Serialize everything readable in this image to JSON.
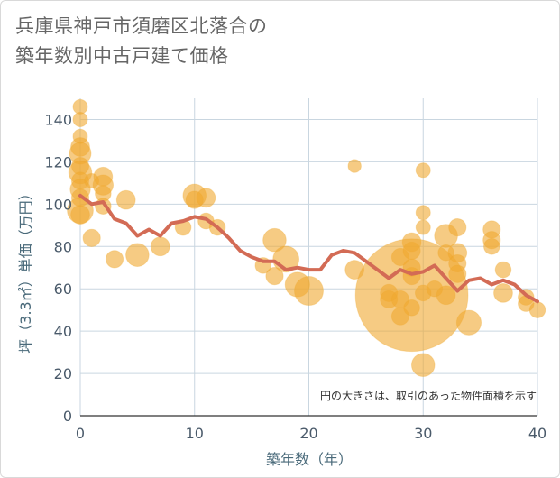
{
  "header": {
    "title_line1": "兵庫県神戸市須磨区北落合の",
    "title_line2": "築年数別中古戸建て価格"
  },
  "colors": {
    "bubble": "#f0a830",
    "line": "#d36b55",
    "grid": "#c9d6e0",
    "axis_text": "#4a5a6a"
  },
  "chart_data": {
    "type": "scatter",
    "xlabel": "築年数（年）",
    "ylabel": "坪（3.3㎡）単価（万円）",
    "xlim": [
      0,
      40
    ],
    "ylim": [
      0,
      150
    ],
    "xticks": [
      0,
      10,
      20,
      30,
      40
    ],
    "yticks": [
      0,
      20,
      40,
      60,
      80,
      100,
      120,
      140
    ],
    "annotation": "円の大きさは、取引のあった物件面積を示す",
    "grid": true,
    "series": [
      {
        "kind": "bubble",
        "points": [
          {
            "x": 0,
            "y": 146,
            "s": 1
          },
          {
            "x": 0,
            "y": 140,
            "s": 1
          },
          {
            "x": 0,
            "y": 132,
            "s": 1
          },
          {
            "x": 0,
            "y": 127,
            "s": 1.3
          },
          {
            "x": 0,
            "y": 124,
            "s": 1.5
          },
          {
            "x": 0,
            "y": 118,
            "s": 1.2
          },
          {
            "x": 0,
            "y": 115,
            "s": 1.6
          },
          {
            "x": 0,
            "y": 111,
            "s": 1.2
          },
          {
            "x": 0,
            "y": 107,
            "s": 1.4
          },
          {
            "x": 0,
            "y": 103,
            "s": 1.2
          },
          {
            "x": 0,
            "y": 97,
            "s": 1.8
          },
          {
            "x": 0,
            "y": 95,
            "s": 1.3
          },
          {
            "x": 1,
            "y": 111,
            "s": 1
          },
          {
            "x": 1,
            "y": 84,
            "s": 1.2
          },
          {
            "x": 2,
            "y": 113,
            "s": 1.3
          },
          {
            "x": 2,
            "y": 109,
            "s": 1.4
          },
          {
            "x": 2,
            "y": 105,
            "s": 1.1
          },
          {
            "x": 2,
            "y": 99,
            "s": 1.1
          },
          {
            "x": 3,
            "y": 74,
            "s": 1.2
          },
          {
            "x": 4,
            "y": 102,
            "s": 1.3
          },
          {
            "x": 5,
            "y": 76,
            "s": 1.6
          },
          {
            "x": 7,
            "y": 80,
            "s": 1.3
          },
          {
            "x": 9,
            "y": 89,
            "s": 1.1
          },
          {
            "x": 10,
            "y": 104,
            "s": 1.6
          },
          {
            "x": 10,
            "y": 102,
            "s": 1.2
          },
          {
            "x": 11,
            "y": 103,
            "s": 1.3
          },
          {
            "x": 11,
            "y": 92,
            "s": 1.1
          },
          {
            "x": 12,
            "y": 89,
            "s": 1.1
          },
          {
            "x": 16,
            "y": 71,
            "s": 1.1
          },
          {
            "x": 17,
            "y": 83,
            "s": 1.6
          },
          {
            "x": 17,
            "y": 66,
            "s": 1.2
          },
          {
            "x": 18,
            "y": 74,
            "s": 1.8
          },
          {
            "x": 19,
            "y": 62,
            "s": 1.7
          },
          {
            "x": 20,
            "y": 59,
            "s": 2
          },
          {
            "x": 24,
            "y": 118,
            "s": 0.9
          },
          {
            "x": 24,
            "y": 69,
            "s": 1.3
          },
          {
            "x": 27,
            "y": 58,
            "s": 1.2
          },
          {
            "x": 27,
            "y": 55,
            "s": 1.2
          },
          {
            "x": 28,
            "y": 75,
            "s": 1.2
          },
          {
            "x": 28,
            "y": 55,
            "s": 1.2
          },
          {
            "x": 28,
            "y": 47,
            "s": 1.2
          },
          {
            "x": 29,
            "y": 82,
            "s": 1.3
          },
          {
            "x": 29,
            "y": 78,
            "s": 1.2
          },
          {
            "x": 29,
            "y": 70,
            "s": 1.2
          },
          {
            "x": 29,
            "y": 66,
            "s": 1.2
          },
          {
            "x": 29,
            "y": 57,
            "s": 7.8
          },
          {
            "x": 29,
            "y": 51,
            "s": 1.1
          },
          {
            "x": 30,
            "y": 116,
            "s": 1
          },
          {
            "x": 30,
            "y": 96,
            "s": 1
          },
          {
            "x": 30,
            "y": 89,
            "s": 1
          },
          {
            "x": 30,
            "y": 24,
            "s": 1.6
          },
          {
            "x": 30,
            "y": 58,
            "s": 1.1
          },
          {
            "x": 31,
            "y": 60,
            "s": 1.1
          },
          {
            "x": 32,
            "y": 85,
            "s": 1.6
          },
          {
            "x": 32,
            "y": 77,
            "s": 1.1
          },
          {
            "x": 32,
            "y": 57,
            "s": 1.3
          },
          {
            "x": 33,
            "y": 89,
            "s": 1.2
          },
          {
            "x": 33,
            "y": 77,
            "s": 1.3
          },
          {
            "x": 33,
            "y": 72,
            "s": 1.2
          },
          {
            "x": 33,
            "y": 67,
            "s": 1.2
          },
          {
            "x": 34,
            "y": 44,
            "s": 1.7
          },
          {
            "x": 36,
            "y": 88,
            "s": 1.2
          },
          {
            "x": 36,
            "y": 83,
            "s": 1.2
          },
          {
            "x": 36,
            "y": 80,
            "s": 1.1
          },
          {
            "x": 37,
            "y": 69,
            "s": 1.1
          },
          {
            "x": 37,
            "y": 58,
            "s": 1.3
          },
          {
            "x": 39,
            "y": 56,
            "s": 1.1
          },
          {
            "x": 39,
            "y": 53,
            "s": 1.1
          },
          {
            "x": 40,
            "y": 50,
            "s": 1.1
          }
        ]
      },
      {
        "kind": "line",
        "x": [
          0,
          1,
          2,
          3,
          4,
          5,
          6,
          7,
          8,
          9,
          10,
          11,
          12,
          13,
          14,
          15,
          16,
          17,
          18,
          19,
          20,
          21,
          22,
          23,
          24,
          25,
          26,
          27,
          28,
          29,
          30,
          31,
          32,
          33,
          34,
          35,
          36,
          37,
          38,
          39,
          40
        ],
        "y": [
          104,
          100,
          101,
          93,
          91,
          85,
          88,
          85,
          91,
          92,
          94,
          93,
          89,
          84,
          78,
          75,
          73,
          73,
          69,
          70,
          69,
          69,
          76,
          78,
          77,
          73,
          69,
          65,
          69,
          67,
          68,
          71,
          65,
          59,
          64,
          65,
          62,
          64,
          62,
          57,
          54
        ]
      }
    ]
  }
}
